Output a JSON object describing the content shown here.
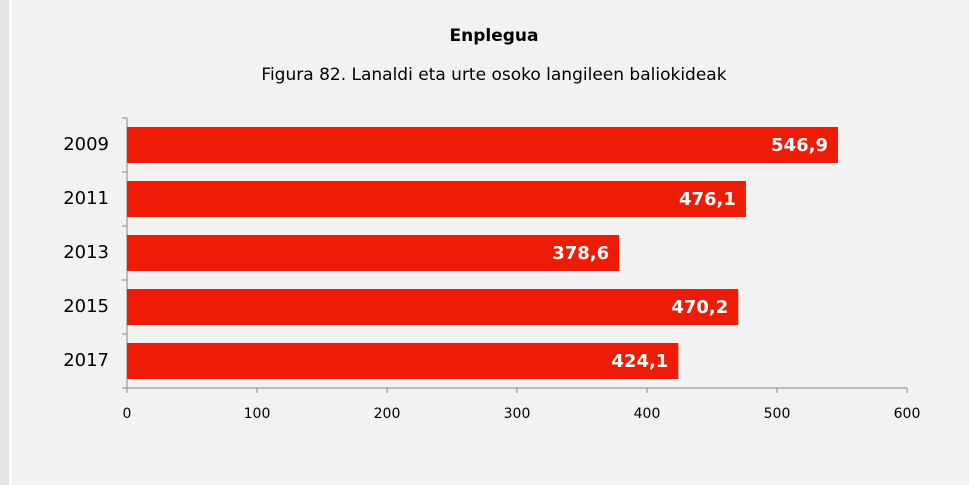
{
  "chart_data": {
    "type": "bar",
    "orientation": "horizontal",
    "title": "Enplegua",
    "subtitle": "Figura 82. Lanaldi eta urte osoko langileen baliokideak",
    "categories": [
      "2009",
      "2011",
      "2013",
      "2015",
      "2017"
    ],
    "values": [
      546.9,
      476.1,
      378.6,
      470.2,
      424.1
    ],
    "value_labels": [
      "546,9",
      "476,1",
      "378,6",
      "470,2",
      "424,1"
    ],
    "color": "#ee1c06",
    "xlim": [
      0,
      600
    ],
    "xticks": [
      0,
      100,
      200,
      300,
      400,
      500,
      600
    ]
  }
}
